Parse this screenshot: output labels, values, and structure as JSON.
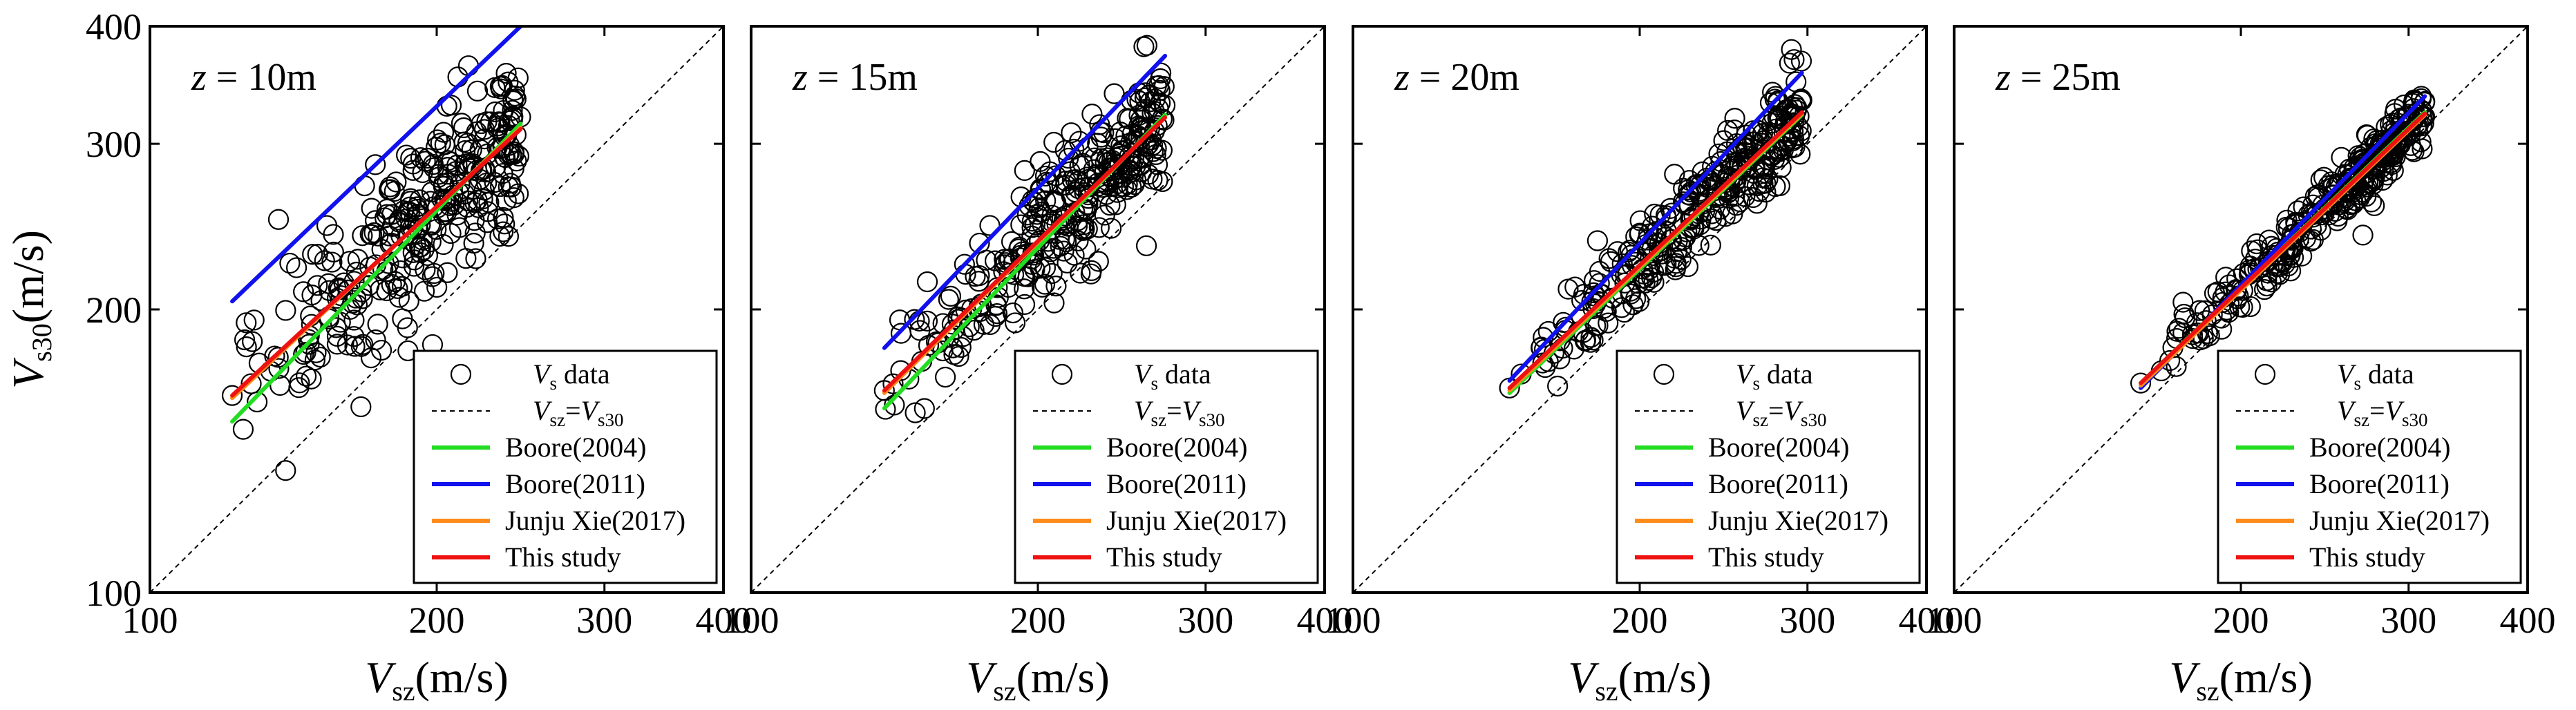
{
  "chart_data": [
    {
      "type": "scatter",
      "panel_label": {
        "var": "z",
        "eq": " = ",
        "value": "10m"
      },
      "x": {
        "label_main": "V",
        "label_sub": "sz",
        "label_unit": "(m/s)",
        "scale": "log",
        "lim": [
          100,
          400
        ],
        "ticks": [
          "100",
          "200",
          "300",
          "400"
        ]
      },
      "y": {
        "label_main": "V",
        "label_sub": "s30",
        "label_unit": "(m/s)",
        "scale": "log",
        "lim": [
          100,
          400
        ],
        "ticks": [
          "100",
          "200",
          "300",
          "400"
        ]
      },
      "data_range": {
        "x": [
          122,
          245
        ],
        "y_spread": 0.05
      },
      "series": [
        {
          "name": "Boore(2004)",
          "color": "#22dd22",
          "x": [
            122,
            245
          ],
          "y": [
            152,
            315
          ]
        },
        {
          "name": "Boore(2011)",
          "color": "#1111ee",
          "x": [
            122,
            245
          ],
          "y": [
            204,
            400
          ]
        },
        {
          "name": "Junju Xie(2017)",
          "color": "#ff8c1a",
          "x": [
            122,
            245
          ],
          "y": [
            161,
            312
          ]
        },
        {
          "name": "This study",
          "color": "#ee1111",
          "x": [
            122,
            245
          ],
          "y": [
            162,
            311
          ]
        }
      ],
      "outlier": {
        "x": 175,
        "y": 181
      }
    },
    {
      "type": "scatter",
      "panel_label": {
        "var": "z",
        "eq": " = ",
        "value": "15m"
      },
      "x": {
        "label_main": "V",
        "label_sub": "sz",
        "label_unit": "(m/s)",
        "scale": "log",
        "lim": [
          100,
          400
        ],
        "ticks": [
          "100",
          "200",
          "300",
          "400"
        ]
      },
      "y": {
        "scale": "log",
        "lim": [
          100,
          400
        ]
      },
      "data_range": {
        "x": [
          138,
          272
        ],
        "y_spread": 0.035
      },
      "series": [
        {
          "name": "Boore(2004)",
          "color": "#22dd22",
          "x": [
            138,
            272
          ],
          "y": [
            157,
            322
          ]
        },
        {
          "name": "Boore(2011)",
          "color": "#1111ee",
          "x": [
            138,
            272
          ],
          "y": [
            182,
            372
          ]
        },
        {
          "name": "Junju Xie(2017)",
          "color": "#ff8c1a",
          "x": [
            138,
            272
          ],
          "y": [
            163,
            320
          ]
        },
        {
          "name": "This study",
          "color": "#ee1111",
          "x": [
            138,
            272
          ],
          "y": [
            164,
            320
          ]
        }
      ]
    },
    {
      "type": "scatter",
      "panel_label": {
        "var": "z",
        "eq": " = ",
        "value": "20m"
      },
      "x": {
        "label_main": "V",
        "label_sub": "sz",
        "label_unit": "(m/s)",
        "scale": "log",
        "lim": [
          100,
          400
        ],
        "ticks": [
          "100",
          "200",
          "300",
          "400"
        ]
      },
      "y": {
        "scale": "log",
        "lim": [
          100,
          400
        ]
      },
      "data_range": {
        "x": [
          146,
          296
        ],
        "y_spread": 0.025
      },
      "series": [
        {
          "name": "Boore(2004)",
          "color": "#22dd22",
          "x": [
            146,
            296
          ],
          "y": [
            163,
            322
          ]
        },
        {
          "name": "Boore(2011)",
          "color": "#1111ee",
          "x": [
            146,
            296
          ],
          "y": [
            168,
            357
          ]
        },
        {
          "name": "Junju Xie(2017)",
          "color": "#ff8c1a",
          "x": [
            146,
            296
          ],
          "y": [
            164,
            323
          ]
        },
        {
          "name": "This study",
          "color": "#ee1111",
          "x": [
            146,
            296
          ],
          "y": [
            165,
            324
          ]
        }
      ]
    },
    {
      "type": "scatter",
      "panel_label": {
        "var": "z",
        "eq": " = ",
        "value": "25m"
      },
      "x": {
        "label_main": "V",
        "label_sub": "sz",
        "label_unit": "(m/s)",
        "scale": "log",
        "lim": [
          100,
          400
        ],
        "ticks": [
          "100",
          "200",
          "300",
          "400"
        ]
      },
      "y": {
        "scale": "log",
        "lim": [
          100,
          400
        ]
      },
      "data_range": {
        "x": [
          157,
          312
        ],
        "y_spread": 0.015
      },
      "series": [
        {
          "name": "Boore(2004)",
          "color": "#22dd22",
          "x": [
            157,
            312
          ],
          "y": [
            167,
            324
          ]
        },
        {
          "name": "Boore(2011)",
          "color": "#1111ee",
          "x": [
            157,
            312
          ],
          "y": [
            165,
            337
          ]
        },
        {
          "name": "Junju Xie(2017)",
          "color": "#ff8c1a",
          "x": [
            157,
            312
          ],
          "y": [
            166,
            322
          ]
        },
        {
          "name": "This study",
          "color": "#ee1111",
          "x": [
            157,
            312
          ],
          "y": [
            167,
            323
          ]
        }
      ]
    }
  ],
  "legend": {
    "data_main": "V",
    "data_sub": "s",
    "data_suffix": "  data",
    "ref_a_main": "V",
    "ref_a_sub": "sz",
    "ref_eq": "=",
    "ref_b_main": "V",
    "ref_b_sub": "s30",
    "entries": [
      "Boore(2004)",
      "Boore(2011)",
      "Junju Xie(2017)",
      "This study"
    ]
  }
}
